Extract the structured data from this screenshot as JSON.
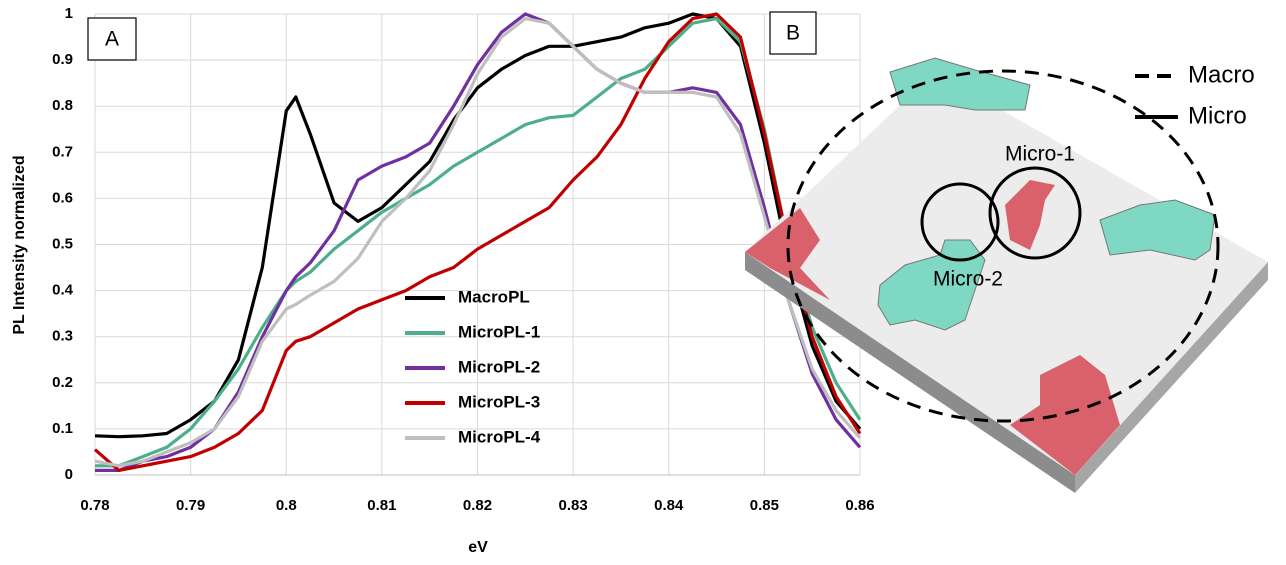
{
  "chart_data": {
    "type": "line",
    "panel_label": "A",
    "x_label": "eV",
    "y_label": "PL Intensity normalized",
    "x": [
      0.78,
      0.7825,
      0.785,
      0.7875,
      0.79,
      0.7925,
      0.795,
      0.7975,
      0.8,
      0.801,
      0.8025,
      0.805,
      0.8075,
      0.81,
      0.8125,
      0.815,
      0.8175,
      0.82,
      0.8225,
      0.825,
      0.8275,
      0.83,
      0.8325,
      0.835,
      0.8375,
      0.84,
      0.8425,
      0.845,
      0.8475,
      0.85,
      0.8525,
      0.855,
      0.8575,
      0.86
    ],
    "series": [
      {
        "name": "MacroPL",
        "color": "#000000",
        "values": [
          0.085,
          0.083,
          0.085,
          0.09,
          0.12,
          0.16,
          0.25,
          0.45,
          0.79,
          0.82,
          0.74,
          0.59,
          0.55,
          0.58,
          0.63,
          0.68,
          0.77,
          0.84,
          0.88,
          0.91,
          0.93,
          0.93,
          0.94,
          0.95,
          0.97,
          0.98,
          1.0,
          0.99,
          0.93,
          0.72,
          0.47,
          0.28,
          0.16,
          0.1
        ]
      },
      {
        "name": "MicroPL-1",
        "color": "#4caf8a",
        "values": [
          0.02,
          0.02,
          0.04,
          0.06,
          0.1,
          0.16,
          0.23,
          0.32,
          0.4,
          0.42,
          0.44,
          0.49,
          0.53,
          0.57,
          0.6,
          0.63,
          0.67,
          0.7,
          0.73,
          0.76,
          0.775,
          0.78,
          0.82,
          0.86,
          0.88,
          0.93,
          0.98,
          0.99,
          0.94,
          0.75,
          0.5,
          0.32,
          0.2,
          0.12
        ]
      },
      {
        "name": "MicroPL-2",
        "color": "#7030a0",
        "values": [
          0.01,
          0.01,
          0.03,
          0.04,
          0.06,
          0.1,
          0.18,
          0.3,
          0.4,
          0.43,
          0.46,
          0.53,
          0.64,
          0.67,
          0.69,
          0.72,
          0.8,
          0.89,
          0.96,
          1.0,
          0.98,
          0.93,
          0.88,
          0.85,
          0.83,
          0.83,
          0.84,
          0.83,
          0.76,
          0.58,
          0.38,
          0.22,
          0.12,
          0.06
        ]
      },
      {
        "name": "MicroPL-3",
        "color": "#c00000",
        "values": [
          0.055,
          0.01,
          0.02,
          0.03,
          0.04,
          0.06,
          0.09,
          0.14,
          0.27,
          0.29,
          0.3,
          0.33,
          0.36,
          0.38,
          0.4,
          0.43,
          0.45,
          0.49,
          0.52,
          0.55,
          0.58,
          0.64,
          0.69,
          0.76,
          0.86,
          0.94,
          0.99,
          1.0,
          0.95,
          0.74,
          0.5,
          0.3,
          0.17,
          0.09
        ]
      },
      {
        "name": "MicroPL-4",
        "color": "#bfbfbf",
        "values": [
          0.03,
          0.02,
          0.03,
          0.05,
          0.07,
          0.1,
          0.17,
          0.29,
          0.36,
          0.37,
          0.39,
          0.42,
          0.47,
          0.55,
          0.6,
          0.66,
          0.76,
          0.87,
          0.95,
          0.99,
          0.98,
          0.93,
          0.88,
          0.85,
          0.83,
          0.83,
          0.83,
          0.82,
          0.74,
          0.56,
          0.38,
          0.23,
          0.14,
          0.08
        ]
      }
    ],
    "xlim": [
      0.78,
      0.86
    ],
    "xticks": [
      0.78,
      0.79,
      0.8,
      0.81,
      0.82,
      0.83,
      0.84,
      0.85,
      0.86
    ],
    "ylim": [
      0,
      1
    ],
    "yticks": [
      0,
      0.1,
      0.2,
      0.3,
      0.4,
      0.5,
      0.6,
      0.7,
      0.8,
      0.9,
      1
    ],
    "grid": true,
    "legend": "lower-right"
  },
  "diagram": {
    "panel_label": "B",
    "legend": [
      "Macro",
      "Micro"
    ],
    "spots": [
      "Micro-1",
      "Micro-2"
    ]
  }
}
